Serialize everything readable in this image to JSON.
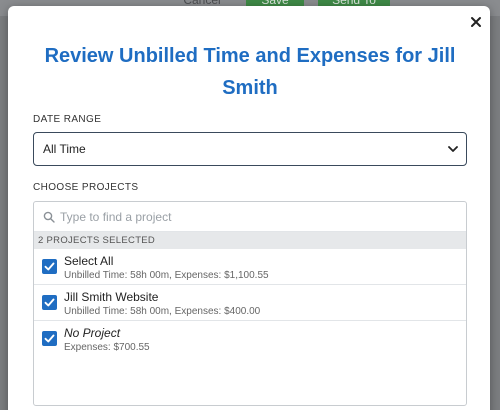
{
  "background": {
    "cancel_label": "Cancel",
    "save_label": "Save",
    "send_label": "Send To"
  },
  "modal": {
    "title": "Review Unbilled Time and Expenses for Jill Smith",
    "close_icon": "close-icon"
  },
  "date_range": {
    "label": "DATE RANGE",
    "value": "All Time",
    "icon": "chevron-down-icon"
  },
  "projects": {
    "label": "CHOOSE PROJECTS",
    "search_placeholder": "Type to find a project",
    "search_icon": "search-icon",
    "selected_count_text": "2 PROJECTS SELECTED",
    "items": [
      {
        "name": "Select All",
        "detail": "Unbilled Time: 58h 00m, Expenses: $1,100.55",
        "checked": true,
        "italic": false
      },
      {
        "name": "Jill Smith Website",
        "detail": "Unbilled Time: 58h 00m, Expenses: $400.00",
        "checked": true,
        "italic": false
      },
      {
        "name": "No Project",
        "detail": "Expenses: $700.55",
        "checked": true,
        "italic": true
      }
    ]
  },
  "colors": {
    "accent": "#1f6dc2",
    "title": "#1f6dc2",
    "save_green": "#3f8a47"
  }
}
